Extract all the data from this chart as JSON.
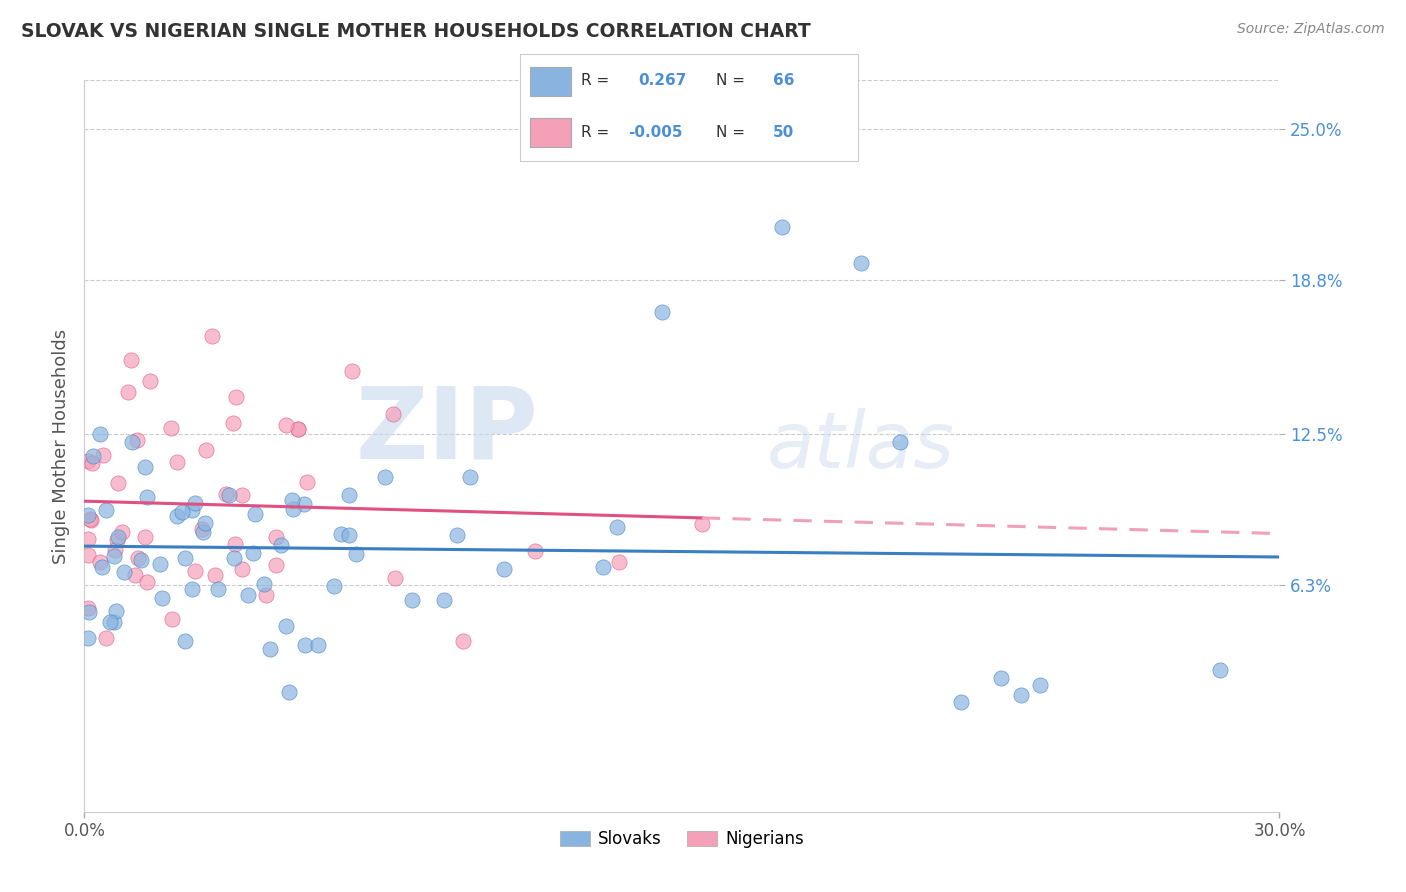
{
  "title": "SLOVAK VS NIGERIAN SINGLE MOTHER HOUSEHOLDS CORRELATION CHART",
  "source": "Source: ZipAtlas.com",
  "ylabel": "Single Mother Households",
  "xlim": [
    0.0,
    0.3
  ],
  "ylim": [
    -0.03,
    0.27
  ],
  "ytick_labels": [
    "6.3%",
    "12.5%",
    "18.8%",
    "25.0%"
  ],
  "ytick_vals": [
    0.063,
    0.125,
    0.188,
    0.25
  ],
  "xtick_labels": [
    "0.0%",
    "30.0%"
  ],
  "xtick_vals": [
    0.0,
    0.3
  ],
  "slovak_color": "#8ab4e0",
  "nigerian_color": "#f4a0b8",
  "slovak_line_color": "#3a7fc1",
  "nigerian_line_color": "#e05080",
  "nigerian_line_dash_color": "#f0a0b8",
  "r_slovak": 0.267,
  "n_slovak": 66,
  "r_nigerian": -0.005,
  "n_nigerian": 50,
  "watermark_zip": "ZIP",
  "watermark_atlas": "atlas",
  "background_color": "#ffffff",
  "grid_color": "#cccccc",
  "title_color": "#333333",
  "source_color": "#888888",
  "ytick_color": "#4a90d9",
  "xtick_color": "#555555",
  "ylabel_color": "#555555",
  "legend_text_color": "#333333",
  "legend_value_color": "#4a90d9"
}
